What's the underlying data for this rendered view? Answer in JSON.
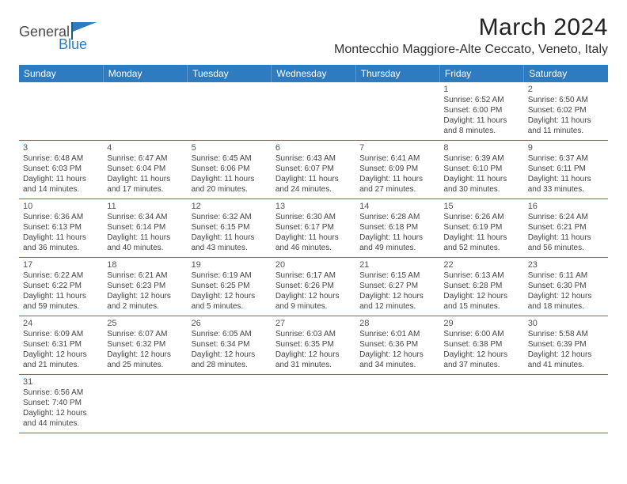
{
  "brand": {
    "name1": "General",
    "name2": "Blue",
    "color1": "#4a4a4a",
    "color2": "#2f7bbf"
  },
  "header": {
    "month_title": "March 2024",
    "location": "Montecchio Maggiore-Alte Ceccato, Veneto, Italy"
  },
  "weekdays": [
    "Sunday",
    "Monday",
    "Tuesday",
    "Wednesday",
    "Thursday",
    "Friday",
    "Saturday"
  ],
  "colors": {
    "header_bg": "#2f7bbf",
    "header_text": "#ffffff",
    "border": "#2f7bbf"
  },
  "weeks": [
    [
      null,
      null,
      null,
      null,
      null,
      {
        "n": "1",
        "sr": "Sunrise: 6:52 AM",
        "ss": "Sunset: 6:00 PM",
        "d1": "Daylight: 11 hours",
        "d2": "and 8 minutes."
      },
      {
        "n": "2",
        "sr": "Sunrise: 6:50 AM",
        "ss": "Sunset: 6:02 PM",
        "d1": "Daylight: 11 hours",
        "d2": "and 11 minutes."
      }
    ],
    [
      {
        "n": "3",
        "sr": "Sunrise: 6:48 AM",
        "ss": "Sunset: 6:03 PM",
        "d1": "Daylight: 11 hours",
        "d2": "and 14 minutes."
      },
      {
        "n": "4",
        "sr": "Sunrise: 6:47 AM",
        "ss": "Sunset: 6:04 PM",
        "d1": "Daylight: 11 hours",
        "d2": "and 17 minutes."
      },
      {
        "n": "5",
        "sr": "Sunrise: 6:45 AM",
        "ss": "Sunset: 6:06 PM",
        "d1": "Daylight: 11 hours",
        "d2": "and 20 minutes."
      },
      {
        "n": "6",
        "sr": "Sunrise: 6:43 AM",
        "ss": "Sunset: 6:07 PM",
        "d1": "Daylight: 11 hours",
        "d2": "and 24 minutes."
      },
      {
        "n": "7",
        "sr": "Sunrise: 6:41 AM",
        "ss": "Sunset: 6:09 PM",
        "d1": "Daylight: 11 hours",
        "d2": "and 27 minutes."
      },
      {
        "n": "8",
        "sr": "Sunrise: 6:39 AM",
        "ss": "Sunset: 6:10 PM",
        "d1": "Daylight: 11 hours",
        "d2": "and 30 minutes."
      },
      {
        "n": "9",
        "sr": "Sunrise: 6:37 AM",
        "ss": "Sunset: 6:11 PM",
        "d1": "Daylight: 11 hours",
        "d2": "and 33 minutes."
      }
    ],
    [
      {
        "n": "10",
        "sr": "Sunrise: 6:36 AM",
        "ss": "Sunset: 6:13 PM",
        "d1": "Daylight: 11 hours",
        "d2": "and 36 minutes."
      },
      {
        "n": "11",
        "sr": "Sunrise: 6:34 AM",
        "ss": "Sunset: 6:14 PM",
        "d1": "Daylight: 11 hours",
        "d2": "and 40 minutes."
      },
      {
        "n": "12",
        "sr": "Sunrise: 6:32 AM",
        "ss": "Sunset: 6:15 PM",
        "d1": "Daylight: 11 hours",
        "d2": "and 43 minutes."
      },
      {
        "n": "13",
        "sr": "Sunrise: 6:30 AM",
        "ss": "Sunset: 6:17 PM",
        "d1": "Daylight: 11 hours",
        "d2": "and 46 minutes."
      },
      {
        "n": "14",
        "sr": "Sunrise: 6:28 AM",
        "ss": "Sunset: 6:18 PM",
        "d1": "Daylight: 11 hours",
        "d2": "and 49 minutes."
      },
      {
        "n": "15",
        "sr": "Sunrise: 6:26 AM",
        "ss": "Sunset: 6:19 PM",
        "d1": "Daylight: 11 hours",
        "d2": "and 52 minutes."
      },
      {
        "n": "16",
        "sr": "Sunrise: 6:24 AM",
        "ss": "Sunset: 6:21 PM",
        "d1": "Daylight: 11 hours",
        "d2": "and 56 minutes."
      }
    ],
    [
      {
        "n": "17",
        "sr": "Sunrise: 6:22 AM",
        "ss": "Sunset: 6:22 PM",
        "d1": "Daylight: 11 hours",
        "d2": "and 59 minutes."
      },
      {
        "n": "18",
        "sr": "Sunrise: 6:21 AM",
        "ss": "Sunset: 6:23 PM",
        "d1": "Daylight: 12 hours",
        "d2": "and 2 minutes."
      },
      {
        "n": "19",
        "sr": "Sunrise: 6:19 AM",
        "ss": "Sunset: 6:25 PM",
        "d1": "Daylight: 12 hours",
        "d2": "and 5 minutes."
      },
      {
        "n": "20",
        "sr": "Sunrise: 6:17 AM",
        "ss": "Sunset: 6:26 PM",
        "d1": "Daylight: 12 hours",
        "d2": "and 9 minutes."
      },
      {
        "n": "21",
        "sr": "Sunrise: 6:15 AM",
        "ss": "Sunset: 6:27 PM",
        "d1": "Daylight: 12 hours",
        "d2": "and 12 minutes."
      },
      {
        "n": "22",
        "sr": "Sunrise: 6:13 AM",
        "ss": "Sunset: 6:28 PM",
        "d1": "Daylight: 12 hours",
        "d2": "and 15 minutes."
      },
      {
        "n": "23",
        "sr": "Sunrise: 6:11 AM",
        "ss": "Sunset: 6:30 PM",
        "d1": "Daylight: 12 hours",
        "d2": "and 18 minutes."
      }
    ],
    [
      {
        "n": "24",
        "sr": "Sunrise: 6:09 AM",
        "ss": "Sunset: 6:31 PM",
        "d1": "Daylight: 12 hours",
        "d2": "and 21 minutes."
      },
      {
        "n": "25",
        "sr": "Sunrise: 6:07 AM",
        "ss": "Sunset: 6:32 PM",
        "d1": "Daylight: 12 hours",
        "d2": "and 25 minutes."
      },
      {
        "n": "26",
        "sr": "Sunrise: 6:05 AM",
        "ss": "Sunset: 6:34 PM",
        "d1": "Daylight: 12 hours",
        "d2": "and 28 minutes."
      },
      {
        "n": "27",
        "sr": "Sunrise: 6:03 AM",
        "ss": "Sunset: 6:35 PM",
        "d1": "Daylight: 12 hours",
        "d2": "and 31 minutes."
      },
      {
        "n": "28",
        "sr": "Sunrise: 6:01 AM",
        "ss": "Sunset: 6:36 PM",
        "d1": "Daylight: 12 hours",
        "d2": "and 34 minutes."
      },
      {
        "n": "29",
        "sr": "Sunrise: 6:00 AM",
        "ss": "Sunset: 6:38 PM",
        "d1": "Daylight: 12 hours",
        "d2": "and 37 minutes."
      },
      {
        "n": "30",
        "sr": "Sunrise: 5:58 AM",
        "ss": "Sunset: 6:39 PM",
        "d1": "Daylight: 12 hours",
        "d2": "and 41 minutes."
      }
    ],
    [
      {
        "n": "31",
        "sr": "Sunrise: 6:56 AM",
        "ss": "Sunset: 7:40 PM",
        "d1": "Daylight: 12 hours",
        "d2": "and 44 minutes."
      },
      null,
      null,
      null,
      null,
      null,
      null
    ]
  ]
}
